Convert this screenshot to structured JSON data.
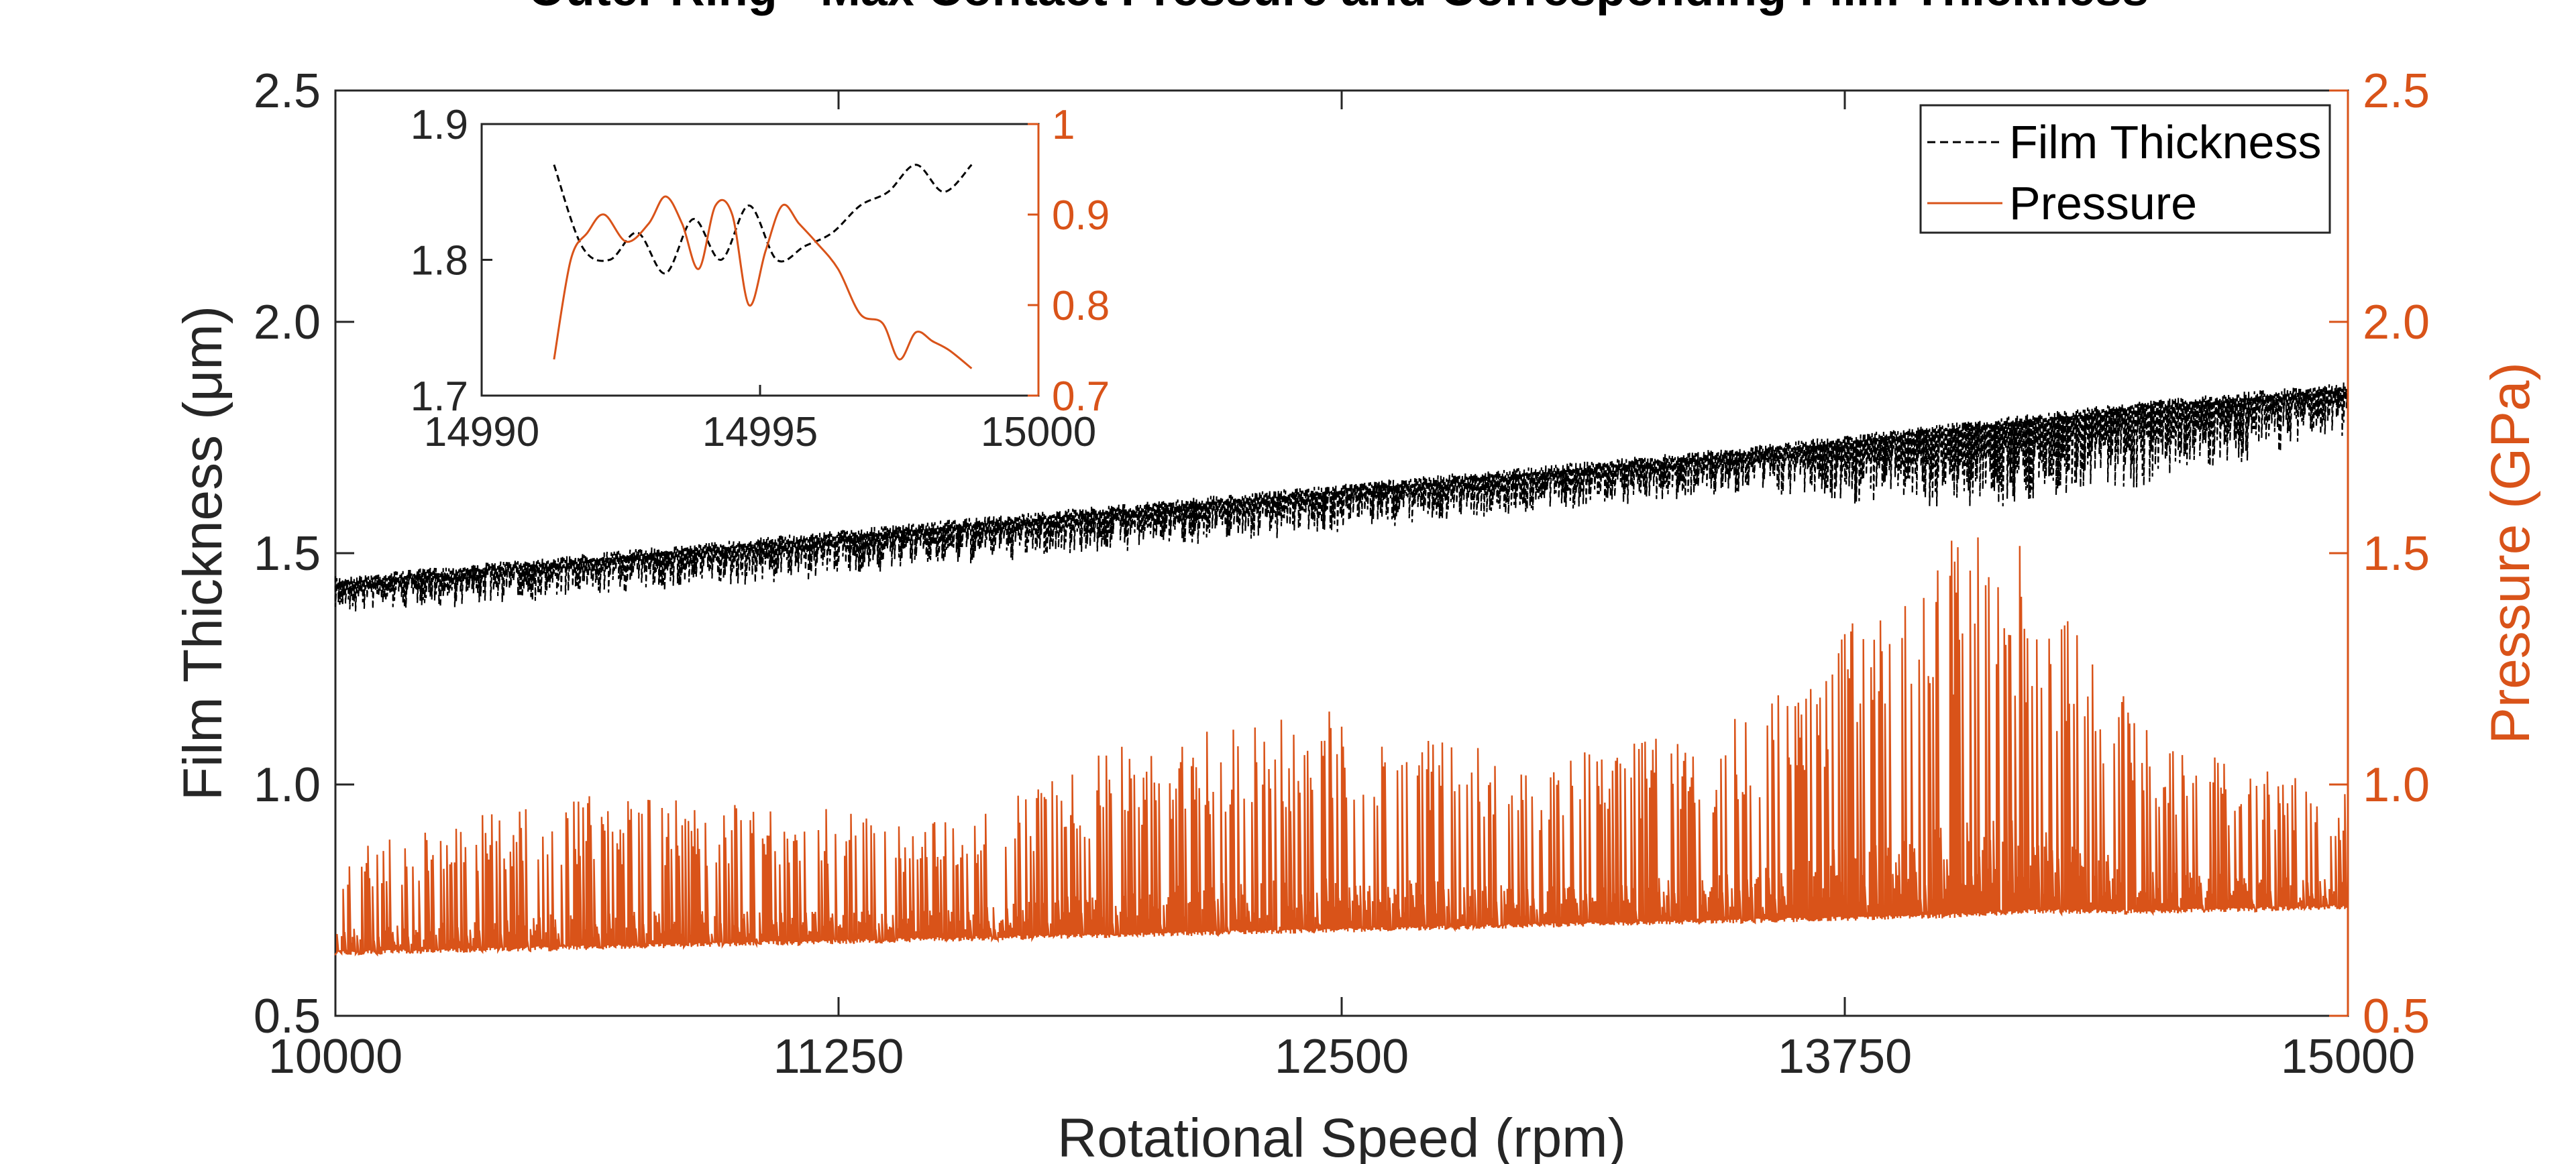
{
  "chart_data": [
    {
      "type": "line",
      "title": "Outer Ring - Max Contact Pressure and Corresponding Film Thickness",
      "xlabel": "Rotational Speed (rpm)",
      "ylabel_left": "Film Thickness (μm)",
      "ylabel_right": "Pressure (GPa)",
      "xlim": [
        10000,
        15000
      ],
      "ylim_left": [
        0.5,
        2.5
      ],
      "ylim_right": [
        0.5,
        2.5
      ],
      "xticks": [
        "10000",
        "11250",
        "12500",
        "13750",
        "15000"
      ],
      "yticks_left": [
        "0.5",
        "1.0",
        "1.5",
        "2.0",
        "2.5"
      ],
      "yticks_right": [
        "0.5",
        "1.0",
        "1.5",
        "2.0",
        "2.5"
      ],
      "grid": false,
      "legend_position": "top-right",
      "colors": {
        "film": "#000000",
        "pressure": "#D95319",
        "axis": "#262626"
      },
      "series": [
        {
          "name": "Film Thickness",
          "axis": "left",
          "style": "dashed",
          "x": [
            10000,
            10500,
            11000,
            11500,
            12000,
            12500,
            13000,
            13500,
            14000,
            14500,
            15000
          ],
          "upper": [
            1.45,
            1.49,
            1.53,
            1.57,
            1.61,
            1.65,
            1.69,
            1.73,
            1.78,
            1.83,
            1.87
          ],
          "lower": [
            1.38,
            1.41,
            1.44,
            1.48,
            1.52,
            1.56,
            1.6,
            1.64,
            1.6,
            1.65,
            1.77
          ]
        },
        {
          "name": "Pressure",
          "axis": "right",
          "style": "solid",
          "x": [
            10000,
            10500,
            11000,
            11500,
            12000,
            12500,
            13000,
            13500,
            14000,
            14200,
            14500,
            15000
          ],
          "baseline": [
            0.63,
            0.64,
            0.65,
            0.66,
            0.67,
            0.68,
            0.69,
            0.7,
            0.71,
            0.72,
            0.72,
            0.73
          ],
          "peak": [
            0.85,
            0.98,
            0.96,
            0.93,
            1.1,
            1.17,
            1.05,
            1.15,
            1.54,
            1.54,
            1.12,
            0.98
          ]
        }
      ]
    },
    {
      "type": "line",
      "title": "",
      "xlim": [
        14990,
        15000
      ],
      "ylim_left": [
        1.7,
        1.9
      ],
      "ylim_right": [
        0.7,
        1.0
      ],
      "xticks": [
        "14990",
        "14995",
        "15000"
      ],
      "yticks_left": [
        "1.7",
        "1.8",
        "1.9"
      ],
      "yticks_right": [
        "0.7",
        "0.8",
        "0.9",
        "1"
      ],
      "series": [
        {
          "name": "Film Thickness",
          "axis": "left",
          "style": "dashed",
          "x": [
            14991.3,
            14991.8,
            14992.3,
            14992.8,
            14993.3,
            14993.8,
            14994.3,
            14994.8,
            14995.3,
            14995.8,
            14996.3,
            14996.8,
            14997.3,
            14997.8,
            14998.3,
            14998.8
          ],
          "y": [
            1.87,
            1.81,
            1.8,
            1.82,
            1.79,
            1.83,
            1.8,
            1.84,
            1.8,
            1.81,
            1.82,
            1.84,
            1.85,
            1.87,
            1.85,
            1.87
          ]
        },
        {
          "name": "Pressure",
          "axis": "right",
          "style": "solid",
          "x": [
            14991.3,
            14991.6,
            14991.9,
            14992.2,
            14992.6,
            14993.0,
            14993.3,
            14993.6,
            14993.9,
            14994.2,
            14994.5,
            14994.8,
            14995.1,
            14995.4,
            14995.7,
            14996.0,
            14996.4,
            14996.8,
            14997.2,
            14997.5,
            14997.8,
            14998.1,
            14998.4,
            14998.8
          ],
          "y": [
            0.74,
            0.85,
            0.88,
            0.9,
            0.87,
            0.89,
            0.92,
            0.89,
            0.84,
            0.91,
            0.9,
            0.8,
            0.86,
            0.91,
            0.89,
            0.87,
            0.84,
            0.79,
            0.78,
            0.74,
            0.77,
            0.76,
            0.75,
            0.73
          ]
        }
      ]
    }
  ]
}
